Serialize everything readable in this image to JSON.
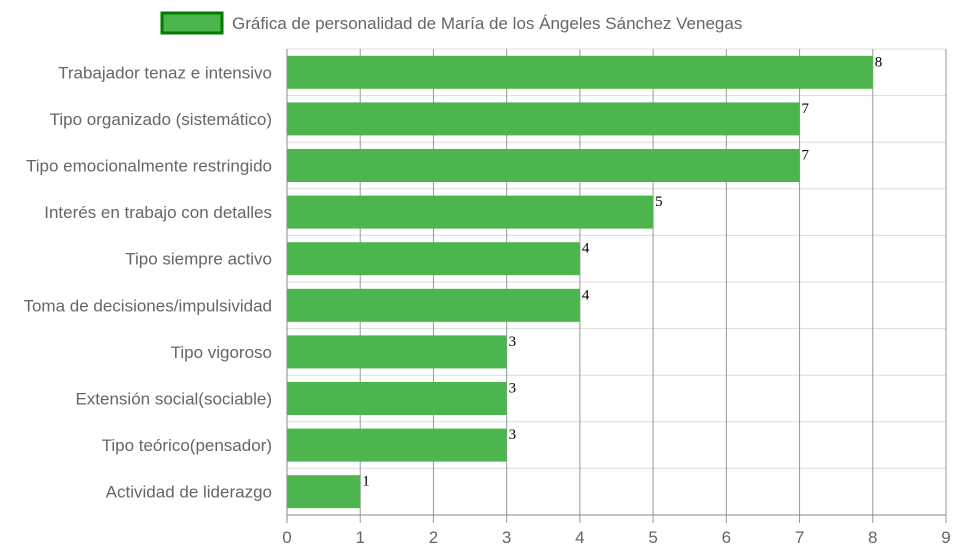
{
  "chart_data": {
    "type": "bar",
    "orientation": "horizontal",
    "categories": [
      "Trabajador tenaz e intensivo",
      "Tipo organizado (sistemático)",
      "Tipo emocionalmente restringido",
      "Interés en trabajo con detalles",
      "Tipo siempre activo",
      "Toma de decisiones/impulsividad",
      "Tipo vigoroso",
      "Extensión social(sociable)",
      "Tipo teórico(pensador)",
      "Actividad de liderazgo"
    ],
    "series": [
      {
        "name": "Gráfica de personalidad de María de los Ángeles Sánchez Venegas",
        "values": [
          8,
          7,
          7,
          5,
          4,
          4,
          3,
          3,
          3,
          1
        ]
      }
    ],
    "xlim": [
      0,
      9
    ],
    "ticks": [
      "0",
      "1",
      "2",
      "3",
      "4",
      "5",
      "6",
      "7",
      "8",
      "9"
    ],
    "grid": true,
    "legend_position": "top-center",
    "colors": {
      "bar_fill": "#4db54d",
      "legend_fill": "#4db54d",
      "legend_border": "#007a00",
      "grid": "#dddddd",
      "vertical_grid": "#999999",
      "text": "#666666"
    }
  }
}
